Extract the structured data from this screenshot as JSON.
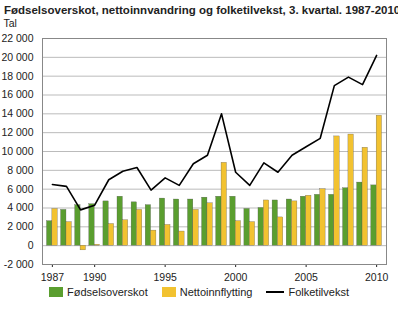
{
  "chart_data": {
    "type": "bar",
    "title": "Fødselsoverskot, nettoinnvandring og folketilvekst, 3. kvartal. 1987-2010",
    "y_label": "Tal",
    "categories": [
      "1987",
      null,
      null,
      "1990",
      null,
      null,
      null,
      null,
      "1995",
      null,
      null,
      null,
      null,
      "2000",
      null,
      null,
      null,
      null,
      "2005",
      null,
      null,
      null,
      null,
      "2010"
    ],
    "series": [
      {
        "name": "Fødselsoverskot",
        "type": "bar",
        "color": "#5a9e2f",
        "values": [
          2600,
          3800,
          4300,
          4400,
          4700,
          5200,
          4600,
          4300,
          5000,
          4900,
          4900,
          5100,
          5200,
          5200,
          3900,
          4000,
          4800,
          4900,
          5200,
          5400,
          5400,
          6100,
          6700,
          6400
        ]
      },
      {
        "name": "Nettoinnflytting",
        "type": "bar",
        "color": "#f2c230",
        "values": [
          3900,
          2500,
          -500,
          100,
          2300,
          2700,
          3800,
          1600,
          2200,
          1500,
          3800,
          4500,
          8800,
          2600,
          2500,
          4800,
          3000,
          4700,
          5300,
          6000,
          11600,
          11800,
          10400,
          13800
        ]
      },
      {
        "name": "Folketilvekst",
        "type": "line",
        "color": "#000000",
        "values": [
          6500,
          6300,
          3800,
          4300,
          7000,
          7900,
          8300,
          5900,
          7200,
          6400,
          8700,
          9600,
          14000,
          7800,
          6400,
          8800,
          7800,
          9600,
          10500,
          11400,
          17000,
          17900,
          17100,
          20200
        ]
      }
    ],
    "ylim": [
      -2000,
      22000
    ],
    "yticks": [
      {
        "value": -2000,
        "label": "-2 000"
      },
      0,
      {
        "value": 2000,
        "label": "2 000"
      },
      {
        "value": 4000,
        "label": "4 000"
      },
      {
        "value": 6000,
        "label": "6 000"
      },
      {
        "value": 8000,
        "label": "8 000"
      },
      {
        "value": 10000,
        "label": "10 000"
      },
      {
        "value": 12000,
        "label": "12 000"
      },
      {
        "value": 14000,
        "label": "14 000"
      },
      {
        "value": 16000,
        "label": "16 000"
      },
      {
        "value": 18000,
        "label": "18 000"
      },
      {
        "value": 20000,
        "label": "20 000"
      },
      {
        "value": 22000,
        "label": "22 000"
      }
    ],
    "grid": true
  }
}
